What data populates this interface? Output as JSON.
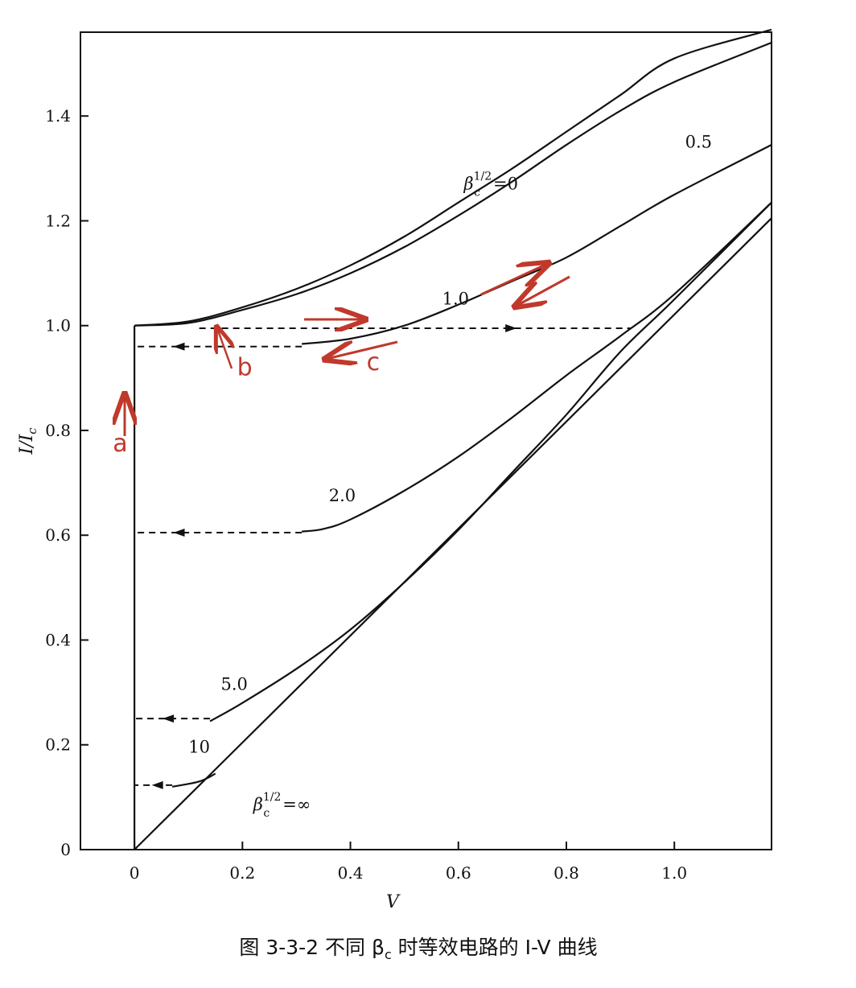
{
  "chart_data": {
    "type": "line",
    "title": "",
    "xlabel": "V",
    "ylabel": "I/I",
    "ylabel_subscript": "c",
    "xlim": [
      -0.1,
      1.18
    ],
    "ylim": [
      0,
      1.56
    ],
    "x_ticks": [
      {
        "value": 0,
        "label": "0"
      },
      {
        "value": 0.2,
        "label": "0.2"
      },
      {
        "value": 0.4,
        "label": "0.4"
      },
      {
        "value": 0.6,
        "label": "0.6"
      },
      {
        "value": 0.8,
        "label": "0.8"
      },
      {
        "value": 1.0,
        "label": "1.0"
      }
    ],
    "y_ticks": [
      {
        "value": 0,
        "label": "0"
      },
      {
        "value": 0.2,
        "label": "0.2"
      },
      {
        "value": 0.4,
        "label": "0.4"
      },
      {
        "value": 0.6,
        "label": "0.6"
      },
      {
        "value": 0.8,
        "label": "0.8"
      },
      {
        "value": 1.0,
        "label": "1.0"
      },
      {
        "value": 1.2,
        "label": "1.2"
      },
      {
        "value": 1.4,
        "label": "1.4"
      }
    ],
    "series": [
      {
        "name": "β_c^1/2 = 0",
        "style": "solid",
        "points": [
          [
            0,
            1.0
          ],
          [
            0.1,
            1.008
          ],
          [
            0.2,
            1.035
          ],
          [
            0.3,
            1.07
          ],
          [
            0.4,
            1.115
          ],
          [
            0.5,
            1.17
          ],
          [
            0.6,
            1.235
          ],
          [
            0.7,
            1.3
          ],
          [
            0.8,
            1.37
          ],
          [
            0.9,
            1.44
          ],
          [
            1.0,
            1.51
          ],
          [
            1.18,
            1.565
          ]
        ]
      },
      {
        "name": "0.5",
        "style": "solid",
        "points": [
          [
            0,
            1.0
          ],
          [
            0.1,
            1.005
          ],
          [
            0.2,
            1.03
          ],
          [
            0.3,
            1.06
          ],
          [
            0.4,
            1.1
          ],
          [
            0.5,
            1.15
          ],
          [
            0.6,
            1.21
          ],
          [
            0.7,
            1.275
          ],
          [
            0.8,
            1.345
          ],
          [
            0.9,
            1.41
          ],
          [
            1.0,
            1.465
          ],
          [
            1.18,
            1.54
          ]
        ]
      },
      {
        "name": "1.0",
        "style": "solid",
        "points": [
          [
            0.31,
            0.965
          ],
          [
            0.4,
            0.975
          ],
          [
            0.5,
            1.0
          ],
          [
            0.6,
            1.04
          ],
          [
            0.7,
            1.085
          ],
          [
            0.8,
            1.13
          ],
          [
            0.9,
            1.19
          ],
          [
            1.0,
            1.25
          ],
          [
            1.18,
            1.345
          ]
        ]
      },
      {
        "name": "2.0",
        "style": "solid",
        "points": [
          [
            0.31,
            0.607
          ],
          [
            0.35,
            0.612
          ],
          [
            0.4,
            0.63
          ],
          [
            0.5,
            0.685
          ],
          [
            0.6,
            0.75
          ],
          [
            0.7,
            0.825
          ],
          [
            0.8,
            0.905
          ],
          [
            0.9,
            0.98
          ],
          [
            1.0,
            1.06
          ],
          [
            1.18,
            1.235
          ]
        ]
      },
      {
        "name": "5.0",
        "style": "solid",
        "points": [
          [
            0.14,
            0.245
          ],
          [
            0.2,
            0.28
          ],
          [
            0.3,
            0.345
          ],
          [
            0.4,
            0.42
          ],
          [
            0.5,
            0.51
          ],
          [
            0.6,
            0.61
          ],
          [
            0.7,
            0.72
          ],
          [
            0.8,
            0.83
          ],
          [
            0.9,
            0.95
          ],
          [
            1.0,
            1.05
          ],
          [
            1.18,
            1.235
          ]
        ]
      },
      {
        "name": "10",
        "style": "solid",
        "points": [
          [
            0.07,
            0.12
          ],
          [
            0.12,
            0.13
          ],
          [
            0.15,
            0.145
          ]
        ]
      },
      {
        "name": "β_c^1/2 = ∞",
        "style": "solid",
        "points": [
          [
            0,
            0
          ],
          [
            1.18,
            1.205
          ]
        ]
      },
      {
        "name": "vertical",
        "style": "solid",
        "points": [
          [
            0,
            0
          ],
          [
            0,
            1.0
          ]
        ]
      },
      {
        "name": "dash-0",
        "style": "dashed",
        "points": [
          [
            0.12,
            0.995
          ],
          [
            0.92,
            0.995
          ]
        ],
        "arrow_at": 0.69,
        "arrow_dir": "right"
      },
      {
        "name": "dash-1",
        "style": "dashed",
        "points": [
          [
            0.31,
            0.96
          ],
          [
            0.0,
            0.96
          ]
        ],
        "arrow_at": 0.09,
        "arrow_dir": "left"
      },
      {
        "name": "dash-2",
        "style": "dashed",
        "points": [
          [
            0.31,
            0.605
          ],
          [
            0.0,
            0.605
          ]
        ],
        "arrow_at": 0.09,
        "arrow_dir": "left"
      },
      {
        "name": "dash-5",
        "style": "dashed",
        "points": [
          [
            0.14,
            0.25
          ],
          [
            0.0,
            0.25
          ]
        ],
        "arrow_at": 0.07,
        "arrow_dir": "left"
      },
      {
        "name": "dash-10",
        "style": "dashed",
        "points": [
          [
            0.07,
            0.123
          ],
          [
            0.0,
            0.123
          ]
        ],
        "arrow_at": 0.05,
        "arrow_dir": "left"
      }
    ],
    "curve_labels": [
      {
        "text": "β",
        "sup": "1/2",
        "sub": "c",
        "suffix": "=0",
        "x": 0.61,
        "y": 1.26
      },
      {
        "text": "0.5",
        "x": 1.02,
        "y": 1.34
      },
      {
        "text": "1.0",
        "x": 0.57,
        "y": 1.04
      },
      {
        "text": "2.0",
        "x": 0.36,
        "y": 0.665
      },
      {
        "text": "5.0",
        "x": 0.16,
        "y": 0.305
      },
      {
        "text": "10",
        "x": 0.1,
        "y": 0.185
      },
      {
        "text": "β",
        "sup": "1/2",
        "sub": "c",
        "suffix": "=∞",
        "x": 0.22,
        "y": 0.075
      }
    ],
    "annotations": [
      {
        "text": "a",
        "x": -0.04,
        "y": 0.76
      },
      {
        "text": "b",
        "x": 0.19,
        "y": 0.905
      },
      {
        "text": "c",
        "x": 0.43,
        "y": 0.915
      }
    ]
  },
  "caption": "图 3-3-2   不同 β",
  "caption_sub": "c",
  "caption_tail": " 时等效电路的 I-V 曲线"
}
